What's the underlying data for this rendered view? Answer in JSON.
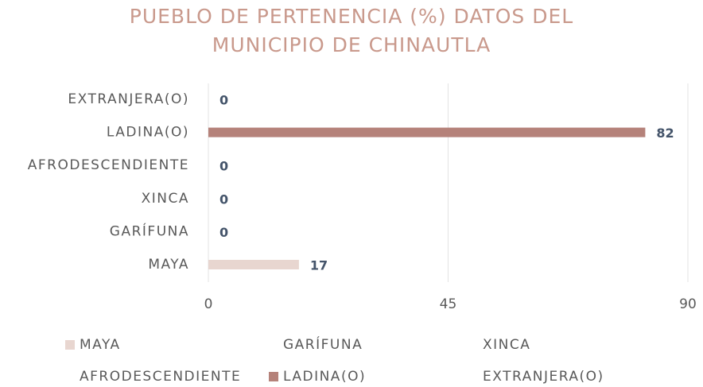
{
  "chart_data": {
    "type": "bar",
    "orientation": "horizontal",
    "title": [
      "PUEBLO DE PERTENENCIA (%) DATOS DEL",
      "MUNICIPIO DE CHINAUTLA"
    ],
    "categories": [
      "MAYA",
      "GARÍFUNA",
      "XINCA",
      "AFRODESCENDIENTE",
      "LADINA(O)",
      "EXTRANJERA(O)"
    ],
    "values": [
      17,
      0,
      0,
      0,
      82,
      0
    ],
    "legend": [
      {
        "name": "MAYA",
        "color": "#e8d6d0"
      },
      {
        "name": "GARÍFUNA"
      },
      {
        "name": "XINCA"
      },
      {
        "name": "AFRODESCENDIENTE"
      },
      {
        "name": "LADINA(O)",
        "color": "#b5827a"
      },
      {
        "name": "EXTRANJERA(O)"
      }
    ],
    "xlim": [
      0,
      90
    ],
    "xticks": [
      0,
      45,
      90
    ],
    "grid": true
  }
}
